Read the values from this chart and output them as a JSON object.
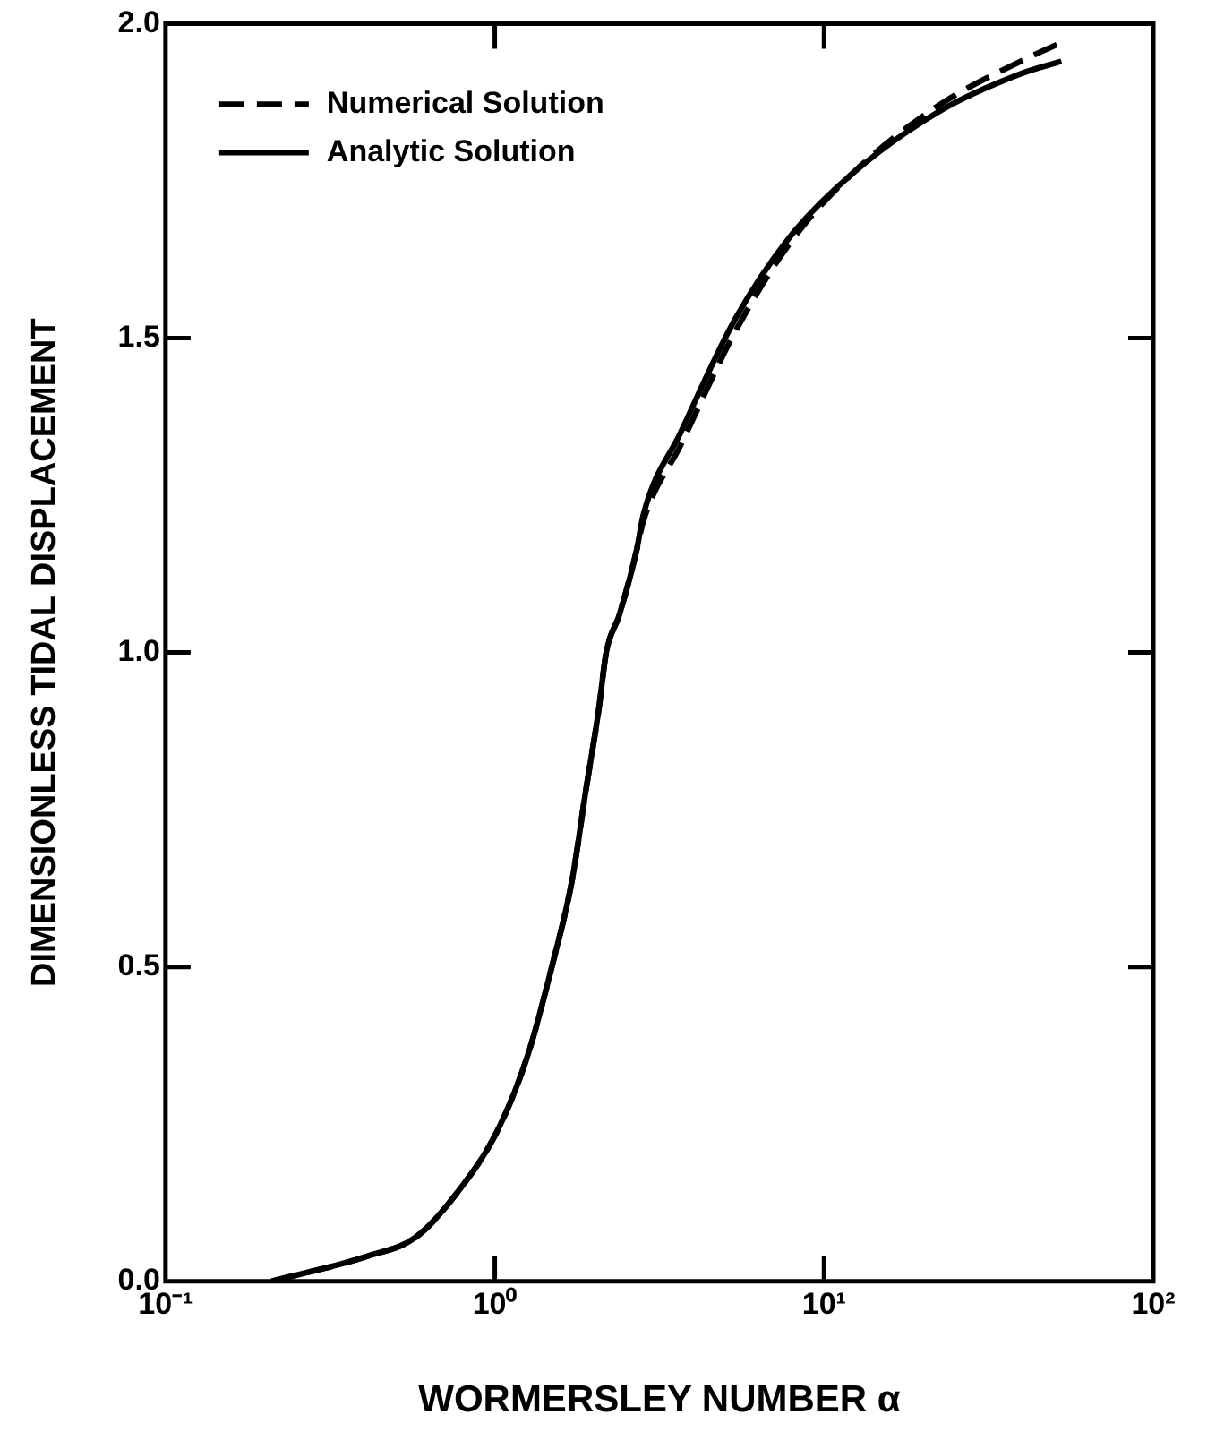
{
  "chart_data": {
    "type": "line",
    "xlabel": "WORMERSLEY NUMBER α",
    "ylabel": "DIMENSIONLESS TIDAL DISPLACEMENT",
    "log": "x",
    "xlim": [
      0.1,
      100
    ],
    "ylim": [
      0,
      2
    ],
    "xticks": [
      {
        "value": 0.1,
        "label": "10⁻¹"
      },
      {
        "value": 1,
        "label": "10⁰"
      },
      {
        "value": 10,
        "label": "10¹"
      },
      {
        "value": 100,
        "label": "10²"
      }
    ],
    "yticks": [
      {
        "value": 0,
        "label": "0.0"
      },
      {
        "value": 0.5,
        "label": "0.5"
      },
      {
        "value": 1,
        "label": "1.0"
      },
      {
        "value": 1.5,
        "label": "1.5"
      },
      {
        "value": 2,
        "label": "2.0"
      }
    ],
    "grid": false,
    "legend": "top left",
    "marker": "none",
    "series": [
      {
        "name": "Numerical Solution",
        "color": "#000000",
        "line_style": "dashed",
        "x": [
          0.21,
          0.41,
          0.575,
          0.766,
          1.02,
          1.26,
          1.49,
          1.72,
          1.89,
          2.07,
          2.18,
          2.39,
          2.69,
          2.83,
          3.67,
          5.37,
          7.85,
          12.1,
          22.3,
          39.5,
          52.6
        ],
        "values": [
          0,
          0.04,
          0.07,
          0.14,
          0.24,
          0.36,
          0.5,
          0.64,
          0.78,
          0.91,
          1.0,
          1.06,
          1.16,
          1.21,
          1.33,
          1.51,
          1.65,
          1.76,
          1.87,
          1.94,
          1.97
        ]
      },
      {
        "name": "Analytic Solution",
        "color": "#000000",
        "line_style": "solid",
        "x": [
          0.21,
          0.41,
          0.575,
          0.766,
          1.02,
          1.26,
          1.49,
          1.72,
          1.89,
          2.07,
          2.18,
          2.39,
          2.69,
          2.83,
          3.67,
          5.37,
          7.85,
          12.1,
          22.3,
          39.5,
          52.6
        ],
        "values": [
          0,
          0.04,
          0.07,
          0.14,
          0.24,
          0.36,
          0.5,
          0.64,
          0.78,
          0.91,
          1.0,
          1.06,
          1.16,
          1.22,
          1.35,
          1.53,
          1.66,
          1.76,
          1.86,
          1.92,
          1.94
        ]
      }
    ]
  }
}
